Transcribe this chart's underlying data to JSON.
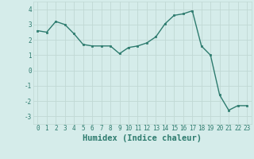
{
  "xlabel": "Humidex (Indice chaleur)",
  "x": [
    0,
    1,
    2,
    3,
    4,
    5,
    6,
    7,
    8,
    9,
    10,
    11,
    12,
    13,
    14,
    15,
    16,
    17,
    18,
    19,
    20,
    21,
    22,
    23
  ],
  "y": [
    2.6,
    2.5,
    3.2,
    3.0,
    2.4,
    1.7,
    1.6,
    1.6,
    1.6,
    1.1,
    1.5,
    1.6,
    1.8,
    2.2,
    3.05,
    3.6,
    3.7,
    3.9,
    1.6,
    1.0,
    -1.6,
    -2.6,
    -2.3,
    -2.3
  ],
  "line_color": "#2d7b6e",
  "marker": "s",
  "marker_size": 2.0,
  "line_width": 1.0,
  "bg_color": "#d5ecea",
  "grid_color": "#c0d8d4",
  "ylim": [
    -3.5,
    4.5
  ],
  "yticks": [
    -3,
    -2,
    -1,
    0,
    1,
    2,
    3,
    4
  ],
  "xlim": [
    -0.5,
    23.5
  ],
  "tick_fontsize": 5.5,
  "label_fontsize": 7.5
}
